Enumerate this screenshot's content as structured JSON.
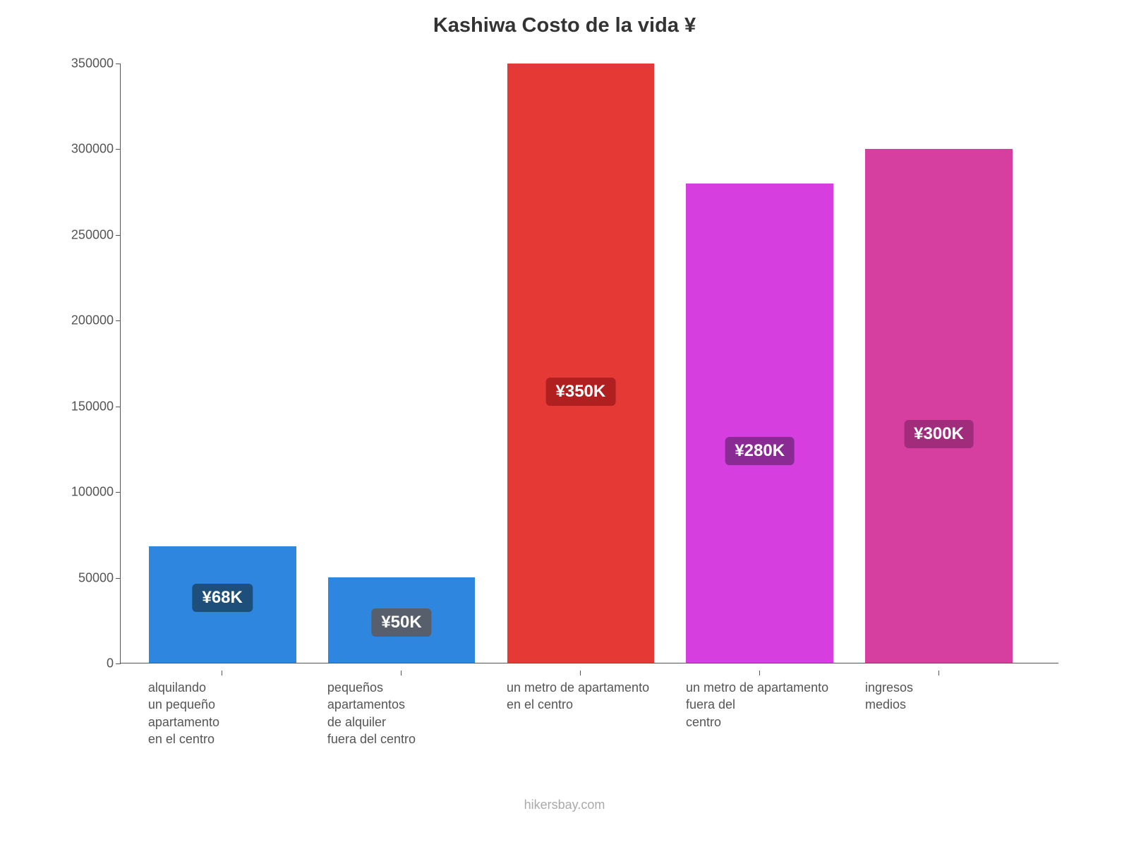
{
  "chart": {
    "type": "bar",
    "title": "Kashiwa Costo de la vida ¥",
    "title_fontsize": 29,
    "title_color": "#333333",
    "background_color": "#ffffff",
    "axis_color": "#555555",
    "tick_label_color": "#555555",
    "tick_fontsize": 18,
    "x_label_fontsize": 18,
    "ylim": [
      0,
      350000
    ],
    "ytick_step": 50000,
    "yticks": [
      "0",
      "50000",
      "100000",
      "150000",
      "200000",
      "250000",
      "300000",
      "350000"
    ],
    "bar_width_pct": 15.7,
    "bar_gap_pct": 3.4,
    "left_pad_pct": 3.0,
    "categories": [
      "alquilando\nun pequeño\napartamento\nen el centro",
      "pequeños\napartamentos\nde alquiler\nfuera del centro",
      "un metro de apartamento\nen el centro",
      "un metro de apartamento\nfuera del\ncentro",
      "ingresos\nmedios"
    ],
    "values": [
      68000,
      50000,
      350000,
      280000,
      300000
    ],
    "value_labels": [
      "¥68K",
      "¥50K",
      "¥350K",
      "¥280K",
      "¥300K"
    ],
    "bar_colors": [
      "#2e86de",
      "#2e86de",
      "#e53935",
      "#d63ee0",
      "#d63ea0"
    ],
    "label_badge_colors": [
      "#1d4f7a",
      "#565f6b",
      "#b02020",
      "#8a2a94",
      "#a12c7c"
    ],
    "label_badge_fontsize": 24,
    "source": "hikersbay.com",
    "source_color": "#aaaaaa",
    "source_fontsize": 18
  }
}
